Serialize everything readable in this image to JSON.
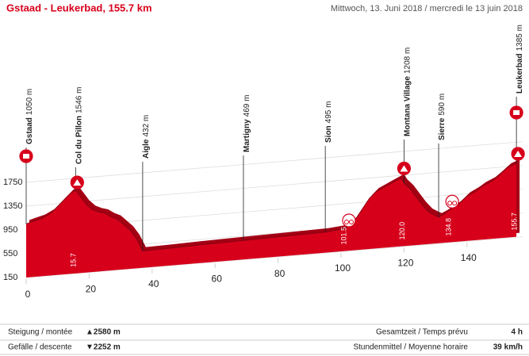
{
  "chart_data": {
    "type": "area",
    "title": "Gstaad - Leukerbad, 155.7 km",
    "subtitle": "Mittwoch, 13. Juni 2018 / mercredi le 13 juin 2018",
    "series": [
      {
        "color": "#d7001b",
        "x": [
          0,
          2,
          5,
          8,
          10,
          12,
          14,
          15.7,
          17,
          19,
          21,
          23,
          25,
          27,
          29,
          31,
          33,
          35,
          37,
          45,
          55,
          69,
          80,
          95,
          100,
          101.5,
          103,
          105,
          107,
          109,
          111,
          113,
          115,
          117,
          119,
          120,
          122,
          124,
          126,
          128,
          130,
          131,
          133,
          134.8,
          137,
          140,
          143,
          145,
          148,
          150,
          153,
          155.7
        ],
        "values": [
          1050,
          1080,
          1120,
          1200,
          1300,
          1400,
          1500,
          1546,
          1450,
          1300,
          1200,
          1150,
          1120,
          1050,
          1000,
          900,
          800,
          650,
          432,
          440,
          455,
          469,
          480,
          495,
          520,
          530,
          580,
          700,
          850,
          1000,
          1100,
          1150,
          1200,
          1250,
          1300,
          1208,
          1100,
          950,
          800,
          680,
          617,
          590,
          640,
          700,
          760,
          900,
          980,
          1050,
          1120,
          1200,
          1330,
          1385
        ]
      }
    ],
    "waypoints": [
      {
        "name": "Gstaad",
        "km": 0,
        "altitude": {
          "value": 1050,
          "label": "1050 m"
        }
      },
      {
        "name": "Col du Pillon",
        "km": 15.7,
        "altitude": {
          "value": 1546,
          "label": "1546 m"
        }
      },
      {
        "name": "Aigle",
        "km": 37,
        "altitude": {
          "value": 432,
          "label": "432 m"
        }
      },
      {
        "name": "Martigny",
        "km": 69,
        "altitude": {
          "value": 469,
          "label": "469 m"
        }
      },
      {
        "name": "Sion",
        "km": 95,
        "altitude": {
          "value": 495,
          "label": "495 m"
        }
      },
      {
        "name": "Montana Village",
        "km": 120,
        "altitude": {
          "value": 1208,
          "label": "1208 m"
        }
      },
      {
        "name": "Sierre",
        "km": 131,
        "altitude": {
          "value": 590,
          "label": "590 m"
        }
      },
      {
        "name": "Leukerbad",
        "km": 155.7,
        "altitude": {
          "value": 1385,
          "label": "1385 m"
        }
      }
    ],
    "km_markers": [
      15.7,
      101.5,
      {
        "value": 120,
        "label": "120.0"
      },
      134.8,
      155.7
    ],
    "xlim": [
      0,
      155.7
    ],
    "ylim": [
      150,
      1750
    ],
    "xticks": [
      0,
      20,
      40,
      60,
      80,
      100,
      120,
      140
    ],
    "yticks": [
      150,
      550,
      950,
      1350,
      1750
    ],
    "grid": true,
    "stats": [
      {
        "label": "Steigung / montée",
        "value": "▲2580 m"
      },
      {
        "label": "Gefälle / descente",
        "value": "▼2252 m"
      },
      {
        "label": "Gesamtzeit / Temps prévu",
        "value": "4 h"
      },
      {
        "label": "Stundenmittel / Moyenne horaire",
        "value": "39 km/h"
      }
    ]
  }
}
